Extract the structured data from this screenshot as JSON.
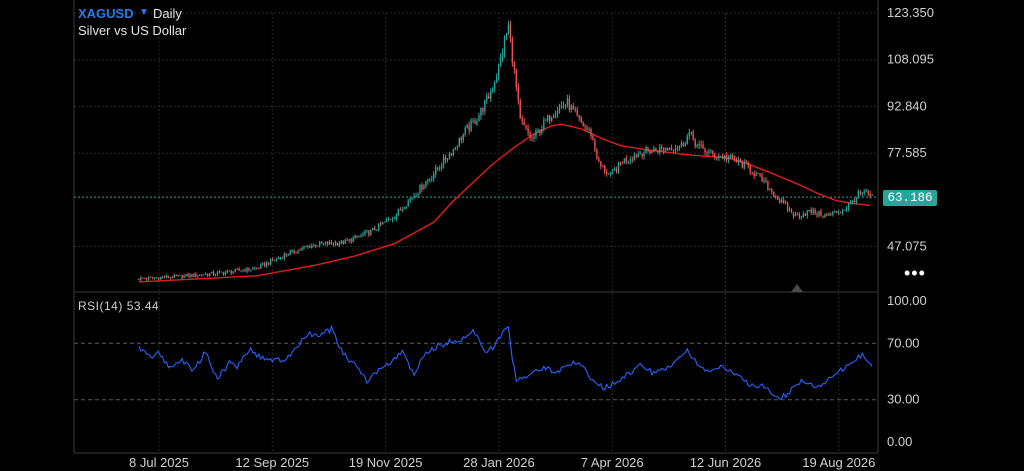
{
  "header": {
    "symbol": "XAGUSD",
    "interval": "Daily",
    "subtitle": "Silver vs US Dollar",
    "caret_icon": "chevron-down-icon"
  },
  "price_tag": "63.186",
  "more_icon": "more-horizontal-icon",
  "colors": {
    "background": "#000000",
    "grid": "#2a2a2a",
    "axis_text": "#d0d0d0",
    "up_candle": "#26a69a",
    "down_candle": "#ef5350",
    "moving_average": "#e31b1b",
    "rsi_line": "#2962ff",
    "price_line": "#26a69a",
    "symbol": "#2b79e8"
  },
  "chart_data": [
    {
      "type": "candlestick",
      "title": "XAGUSD Daily",
      "subtitle": "Silver vs US Dollar",
      "y_ticks": [
        "123.350",
        "108.095",
        "92.840",
        "77.585",
        "47.075"
      ],
      "ylim": [
        36,
        123.35
      ],
      "current_price": 63.186,
      "x_ticks": [
        "8 Jul 2025",
        "12 Sep 2025",
        "19 Nov 2025",
        "28 Jan 2026",
        "7 Apr 2026",
        "12 Jun 2026",
        "19 Aug 2026"
      ],
      "x_range_days": [
        -33,
        376
      ],
      "price_anchors": [
        [
          0,
          36.5
        ],
        [
          20,
          37.3
        ],
        [
          40,
          38.3
        ],
        [
          60,
          40.0
        ],
        [
          75,
          44.5
        ],
        [
          88,
          47.5
        ],
        [
          105,
          48.5
        ],
        [
          118,
          52.0
        ],
        [
          130,
          57.0
        ],
        [
          140,
          64.0
        ],
        [
          150,
          71.0
        ],
        [
          160,
          79.0
        ],
        [
          166,
          84.5
        ],
        [
          172,
          89.0
        ],
        [
          178,
          96.0
        ],
        [
          183,
          105.0
        ],
        [
          186,
          114.0
        ],
        [
          188,
          119.0
        ],
        [
          191,
          104.0
        ],
        [
          194,
          88.0
        ],
        [
          200,
          82.0
        ],
        [
          206,
          87.0
        ],
        [
          212,
          92.0
        ],
        [
          218,
          94.0
        ],
        [
          224,
          88.0
        ],
        [
          230,
          84.0
        ],
        [
          234,
          74.0
        ],
        [
          240,
          70.0
        ],
        [
          246,
          75.0
        ],
        [
          256,
          78.0
        ],
        [
          266,
          79.0
        ],
        [
          276,
          80.0
        ],
        [
          280,
          84.0
        ],
        [
          284,
          80.0
        ],
        [
          292,
          77.0
        ],
        [
          300,
          76.0
        ],
        [
          310,
          73.0
        ],
        [
          318,
          68.0
        ],
        [
          326,
          62.0
        ],
        [
          334,
          57.0
        ],
        [
          342,
          58.5
        ],
        [
          350,
          57.0
        ],
        [
          358,
          59.0
        ],
        [
          362,
          61.0
        ],
        [
          366,
          64.0
        ],
        [
          370,
          64.5
        ],
        [
          373,
          63.2
        ]
      ],
      "ma_anchors": [
        [
          0,
          35.5
        ],
        [
          60,
          37.5
        ],
        [
          90,
          41.0
        ],
        [
          110,
          44.0
        ],
        [
          130,
          48.0
        ],
        [
          150,
          55.0
        ],
        [
          160,
          62.0
        ],
        [
          170,
          68.0
        ],
        [
          180,
          74.0
        ],
        [
          190,
          79.0
        ],
        [
          200,
          83.5
        ],
        [
          210,
          86.5
        ],
        [
          215,
          87.0
        ],
        [
          225,
          85.5
        ],
        [
          235,
          82.5
        ],
        [
          245,
          80.0
        ],
        [
          260,
          78.5
        ],
        [
          280,
          77.0
        ],
        [
          300,
          76.0
        ],
        [
          310,
          74.0
        ],
        [
          320,
          71.5
        ],
        [
          335,
          67.5
        ],
        [
          345,
          64.5
        ],
        [
          355,
          62.0
        ],
        [
          365,
          61.0
        ],
        [
          372,
          60.5
        ]
      ],
      "moving_average_label": ""
    },
    {
      "type": "line",
      "title": "RSI(14)",
      "value_label": "53.44",
      "current_value": 53.44,
      "y_ticks": [
        "100.00",
        "70.00",
        "30.00",
        "0.00"
      ],
      "ylim": [
        0,
        100
      ],
      "levels": [
        70,
        30
      ],
      "rsi_anchors": [
        [
          0,
          67
        ],
        [
          6,
          60
        ],
        [
          10,
          64
        ],
        [
          15,
          53
        ],
        [
          22,
          58
        ],
        [
          28,
          51
        ],
        [
          34,
          64
        ],
        [
          40,
          45
        ],
        [
          46,
          56
        ],
        [
          50,
          54
        ],
        [
          56,
          66
        ],
        [
          62,
          60
        ],
        [
          68,
          58
        ],
        [
          74,
          58
        ],
        [
          80,
          66
        ],
        [
          86,
          77
        ],
        [
          92,
          75
        ],
        [
          98,
          80
        ],
        [
          104,
          62
        ],
        [
          110,
          55
        ],
        [
          116,
          43
        ],
        [
          122,
          51
        ],
        [
          128,
          56
        ],
        [
          134,
          64
        ],
        [
          140,
          48
        ],
        [
          146,
          63
        ],
        [
          152,
          68
        ],
        [
          158,
          71
        ],
        [
          164,
          73
        ],
        [
          170,
          79
        ],
        [
          176,
          64
        ],
        [
          180,
          67
        ],
        [
          186,
          79
        ],
        [
          188,
          80
        ],
        [
          190,
          58
        ],
        [
          192,
          45
        ],
        [
          200,
          48
        ],
        [
          206,
          54
        ],
        [
          212,
          48
        ],
        [
          218,
          56
        ],
        [
          224,
          55
        ],
        [
          230,
          46
        ],
        [
          236,
          38
        ],
        [
          244,
          43
        ],
        [
          250,
          49
        ],
        [
          256,
          55
        ],
        [
          262,
          48
        ],
        [
          268,
          52
        ],
        [
          274,
          59
        ],
        [
          279,
          66
        ],
        [
          284,
          55
        ],
        [
          290,
          50
        ],
        [
          296,
          53
        ],
        [
          302,
          49
        ],
        [
          308,
          44
        ],
        [
          314,
          37
        ],
        [
          318,
          40
        ],
        [
          324,
          31
        ],
        [
          330,
          34
        ],
        [
          336,
          43
        ],
        [
          342,
          40
        ],
        [
          348,
          41
        ],
        [
          354,
          48
        ],
        [
          360,
          54
        ],
        [
          364,
          57
        ],
        [
          368,
          63
        ],
        [
          371,
          58
        ],
        [
          373,
          53.44
        ]
      ]
    }
  ]
}
